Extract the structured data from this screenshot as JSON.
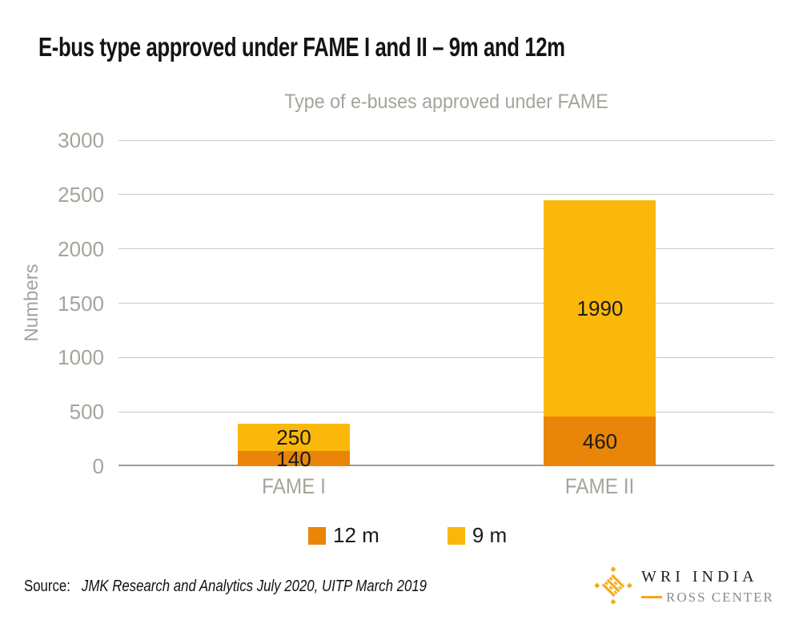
{
  "page_title": "E-bus type approved under FAME I and II – 9m and 12m",
  "chart_data": {
    "type": "bar",
    "stacked": true,
    "title": "Type of e-buses approved under FAME",
    "xlabel": "",
    "ylabel": "Numbers",
    "categories": [
      "FAME I",
      "FAME II"
    ],
    "series": [
      {
        "name": "12 m",
        "color": "#E98508",
        "values": [
          140,
          460
        ]
      },
      {
        "name": "9 m",
        "color": "#FBB80A",
        "values": [
          250,
          1990
        ]
      }
    ],
    "ylim": [
      0,
      3000
    ],
    "yticks": [
      0,
      500,
      1000,
      1500,
      2000,
      2500,
      3000
    ],
    "grid": true,
    "legend_position": "bottom",
    "value_labels": "inside-segments"
  },
  "source": {
    "prefix": "Source:",
    "text": "JMK Research and Analytics July 2020, UITP March 2019"
  },
  "logo": {
    "org": "WRI INDIA",
    "sub": "ROSS CENTER",
    "mark_icon": "wri-weave-mark",
    "gold": "#F0AD1E",
    "dash": "#F5A41C"
  },
  "colors": {
    "bar_12m": "#E98508",
    "bar_9m": "#FBB80A",
    "grid": "#C9C9C2",
    "axis": "#9D9D97",
    "muted_text": "#A7A39B",
    "title_text": "#141414"
  }
}
